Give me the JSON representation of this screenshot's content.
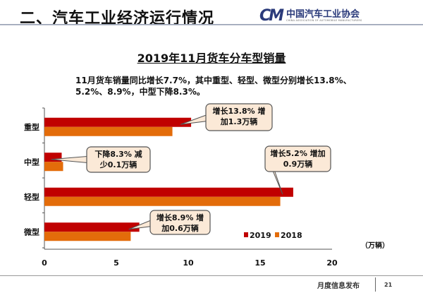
{
  "header": {
    "title": "二、汽车工业经济运行情况",
    "logo_mark": "CM",
    "logo_org": "中国汽车工业协会",
    "logo_org_en": "CHINA ASSOCIATION OF AUTOMOBILE MANUFACTURERS"
  },
  "subtitle_text": "11月货车销量同比增长7.7%，其中重型、轻型、微型分别增长13.8%、5.2%、8.9%，中型下降8.3%。",
  "footer": {
    "label": "月度信息发布",
    "page": "21"
  },
  "chart_data": {
    "type": "bar",
    "orientation": "horizontal",
    "title": "2019年11月货车分车型销量",
    "categories": [
      "重型",
      "中型",
      "轻型",
      "微型"
    ],
    "series": [
      {
        "name": "2019",
        "color": "#c00000",
        "values": [
          10.2,
          1.2,
          17.3,
          6.6
        ]
      },
      {
        "name": "2018",
        "color": "#e36c0a",
        "values": [
          8.9,
          1.3,
          16.4,
          6.0
        ]
      }
    ],
    "xlim": [
      0,
      20
    ],
    "xticks": [
      "0",
      "5",
      "10",
      "15",
      "20"
    ],
    "unit_label": "（万辆）",
    "legend": "bottom-right",
    "grid": false,
    "annotations": [
      {
        "category": "重型",
        "lines": [
          "增长13.8% 增",
          "加1.3万辆"
        ]
      },
      {
        "category": "中型",
        "lines": [
          "下降8.3% 减",
          "少0.1万辆"
        ]
      },
      {
        "category": "轻型",
        "lines": [
          "增长5.2% 增加",
          "0.9万辆"
        ]
      },
      {
        "category": "微型",
        "lines": [
          "增长8.9% 增",
          "加0.6万辆"
        ]
      }
    ]
  }
}
